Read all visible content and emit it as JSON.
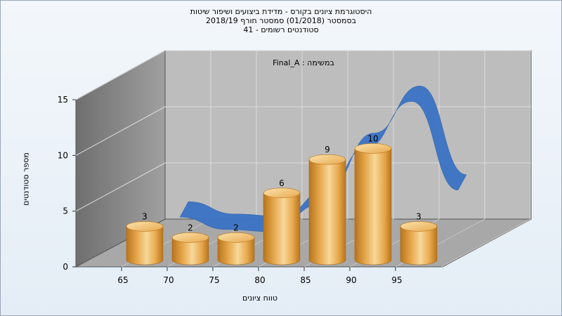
{
  "chart_data": {
    "type": "bar",
    "title_lines": [
      "היסטוגרמת ציונים בקורס - מדידת ביצועים ושיפור שיטות",
      "בסמסטר  (01/2018)  סמסטר חורף 2018/19",
      "סטודנטים רשומים - 41"
    ],
    "inner_label": "Final_A : במשימה",
    "xlabel": "טווח ציונים",
    "ylabel": "מספר סטודנטים",
    "categories": [
      "65",
      "70",
      "75",
      "80",
      "85",
      "90",
      "95"
    ],
    "values": [
      3,
      2,
      2,
      6,
      9,
      10,
      3
    ],
    "ylim": [
      0,
      15
    ],
    "yticks": [
      "0",
      "5",
      "10",
      "15"
    ],
    "xticks": [
      "65",
      "70",
      "75",
      "80",
      "85",
      "90",
      "95"
    ],
    "grid": true,
    "series": [
      {
        "values": [
          3,
          2,
          2,
          6,
          9,
          10,
          3
        ]
      }
    ],
    "curve_values": [
      3.3,
      2.2,
      2.0,
      4.4,
      9.4,
      13.6,
      5.7
    ],
    "colors": {
      "bar_light": "#f7d89a",
      "bar_mid": "#e8a94e",
      "bar_dark": "#b8741c",
      "curve": "#3a73c4",
      "wall_left": "#858585",
      "wall_back": "#bdbdbd",
      "floor": "#a8a8a8"
    }
  }
}
